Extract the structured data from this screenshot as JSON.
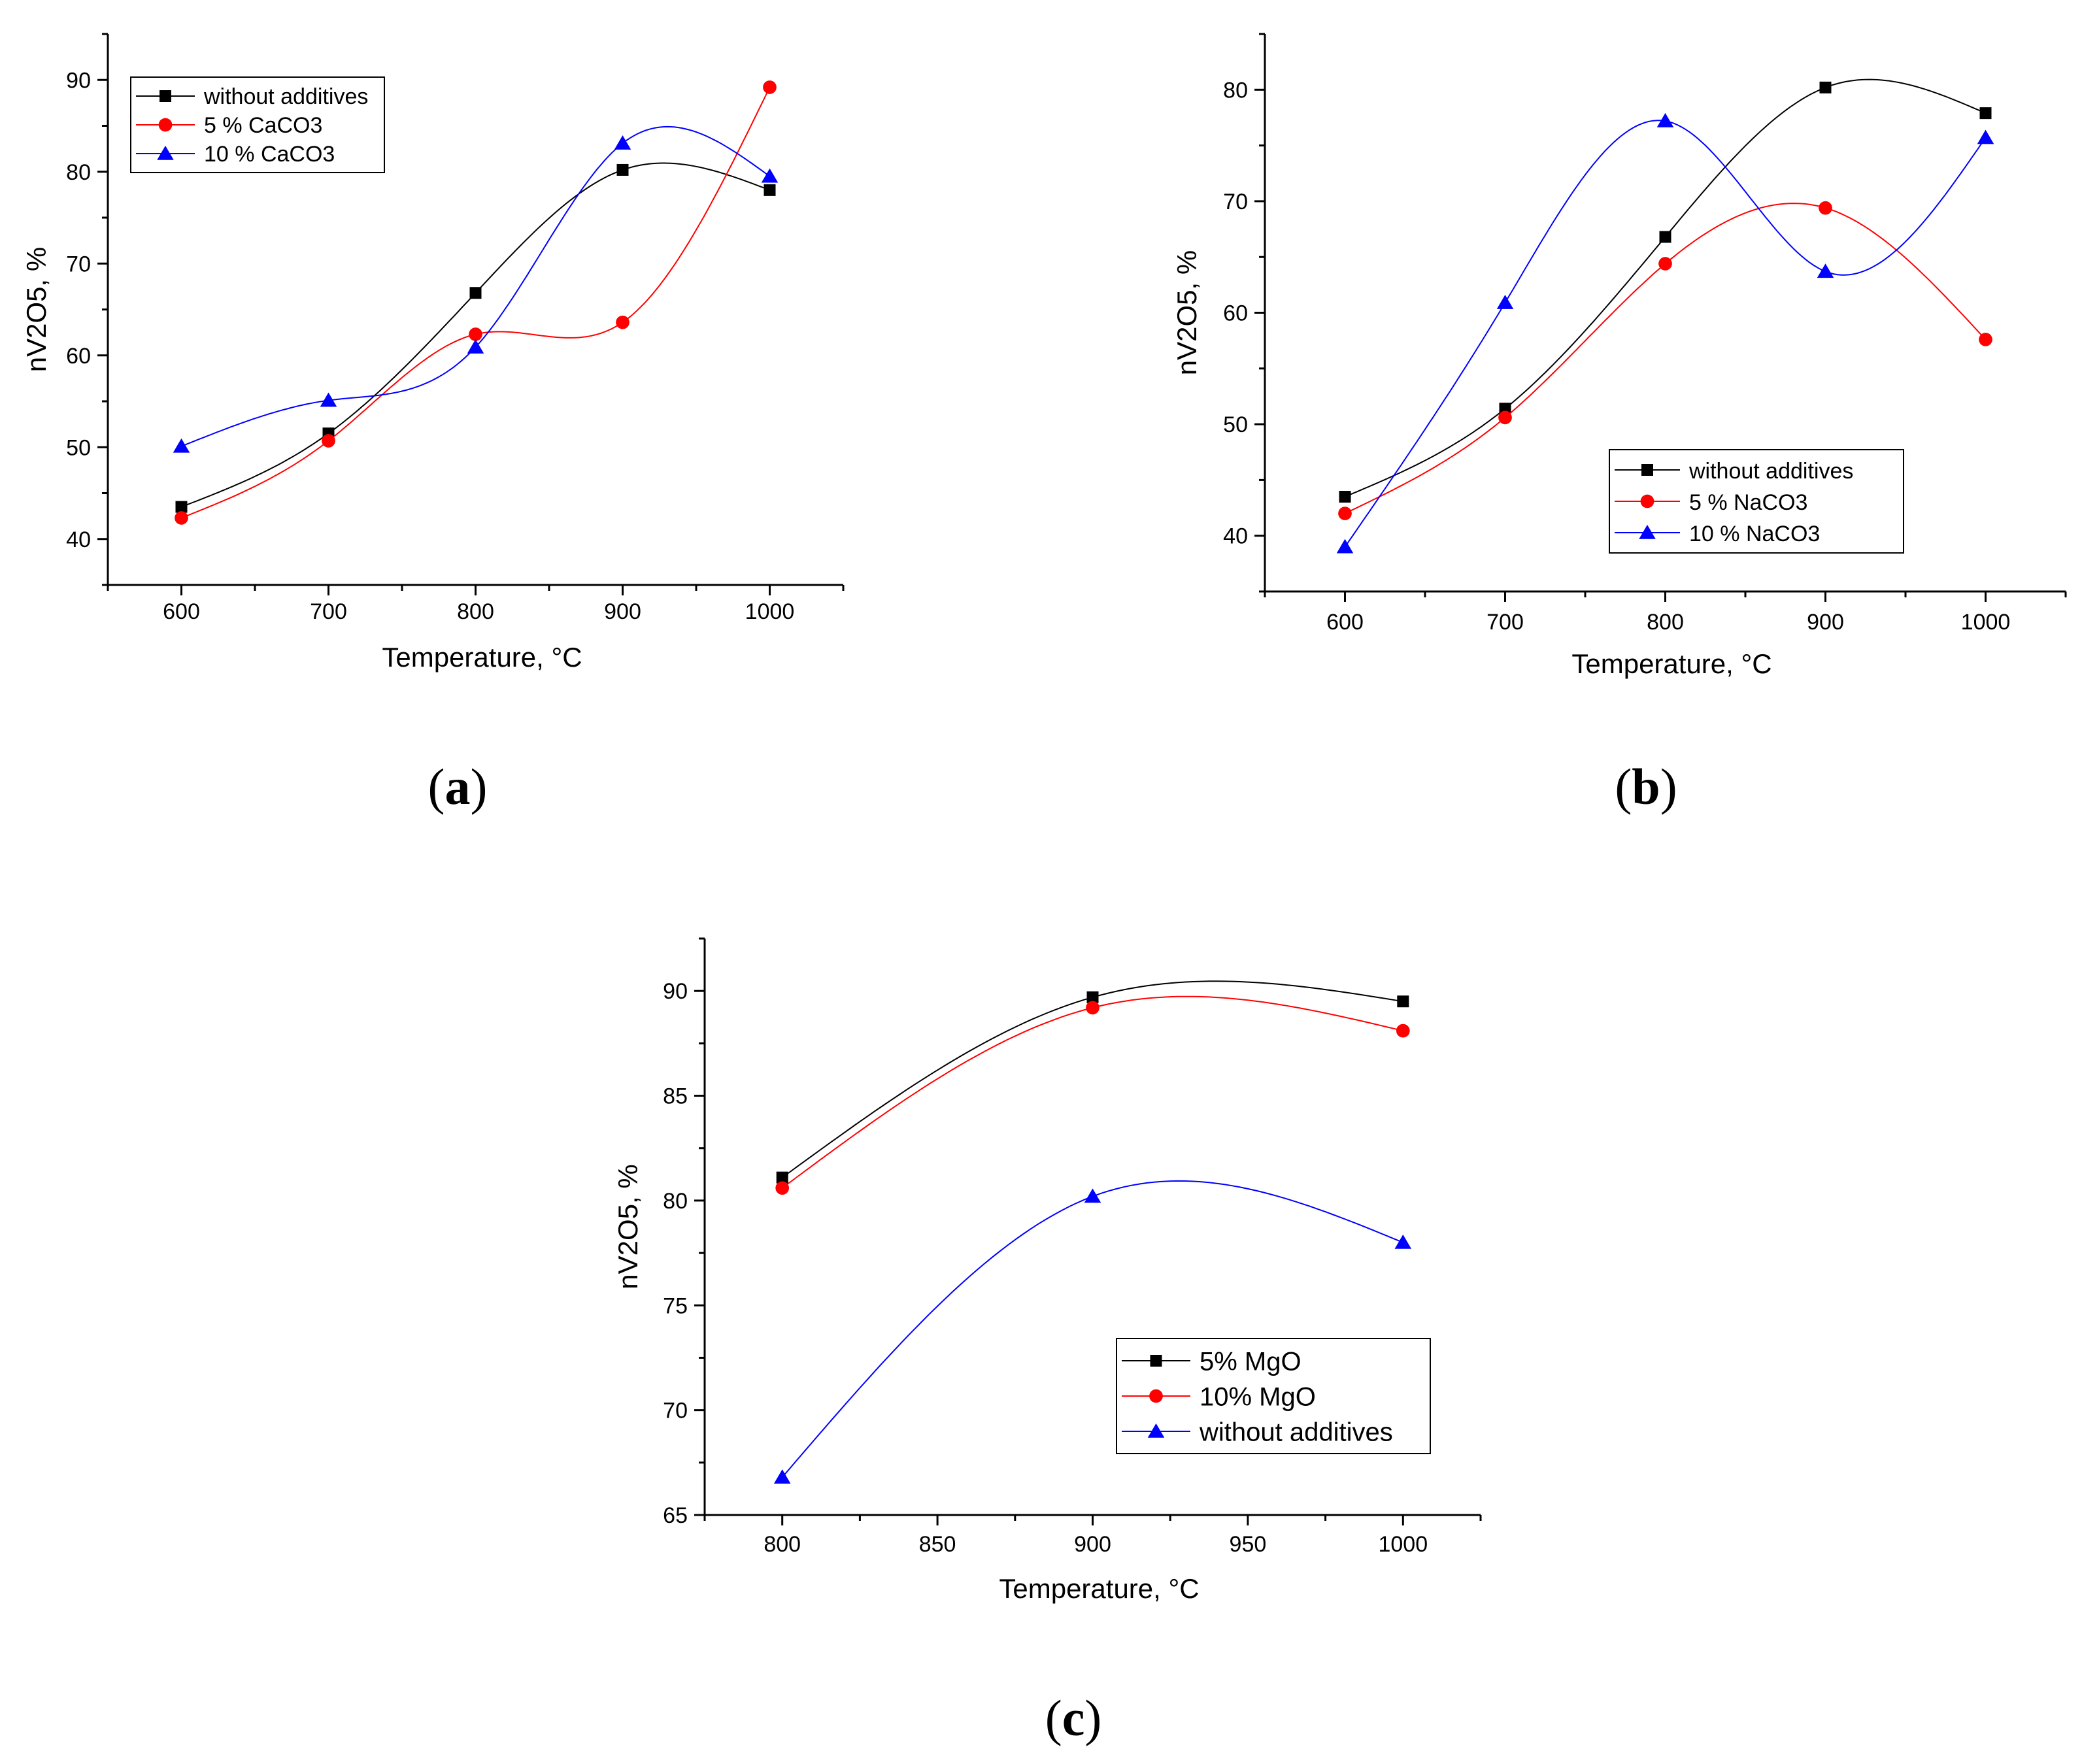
{
  "colors": {
    "black": "#000000",
    "red": "#ff0000",
    "blue": "#0000ff"
  },
  "chart_data": [
    {
      "type": "scatter",
      "panel_label": "a",
      "xlabel": "Temperature, °C",
      "ylabel": "nV2O5, %",
      "xlim": [
        550,
        1050
      ],
      "ylim": [
        35,
        95
      ],
      "xticks": [
        600,
        700,
        800,
        900,
        1000
      ],
      "yticks": [
        40,
        50,
        60,
        70,
        80,
        90
      ],
      "legend_position": "top-left",
      "series": [
        {
          "name": "without additives",
          "marker": "square",
          "color": "#000000",
          "x": [
            600,
            700,
            800,
            900,
            1000
          ],
          "y": [
            43.5,
            51.5,
            66.8,
            80.2,
            78.0
          ]
        },
        {
          "name": "5 % CaCO3",
          "marker": "circle",
          "color": "#ff0000",
          "x": [
            600,
            700,
            800,
            900,
            1000
          ],
          "y": [
            42.3,
            50.7,
            62.3,
            63.6,
            89.2
          ]
        },
        {
          "name": "10 % CaCO3",
          "marker": "triangle",
          "color": "#0000ff",
          "x": [
            600,
            700,
            800,
            900,
            1000
          ],
          "y": [
            50.1,
            55.1,
            60.9,
            83.1,
            79.5
          ]
        }
      ]
    },
    {
      "type": "scatter",
      "panel_label": "b",
      "xlabel": "Temperature, °C",
      "ylabel": "nV2O5, %",
      "xlim": [
        550,
        1050
      ],
      "ylim": [
        35,
        85
      ],
      "xticks": [
        600,
        700,
        800,
        900,
        1000
      ],
      "yticks": [
        40,
        50,
        60,
        70,
        80
      ],
      "legend_position": "center-right",
      "series": [
        {
          "name": "without additives",
          "marker": "square",
          "color": "#000000",
          "x": [
            600,
            700,
            800,
            900,
            1000
          ],
          "y": [
            43.5,
            51.4,
            66.8,
            80.2,
            77.9
          ]
        },
        {
          "name": "5 % NaCO3",
          "marker": "circle",
          "color": "#ff0000",
          "x": [
            600,
            700,
            800,
            900,
            1000
          ],
          "y": [
            42.0,
            50.6,
            64.4,
            69.4,
            57.6
          ]
        },
        {
          "name": "10 % NaCO3",
          "marker": "triangle",
          "color": "#0000ff",
          "x": [
            600,
            700,
            800,
            900,
            1000
          ],
          "y": [
            39.0,
            60.9,
            77.2,
            63.7,
            75.7
          ]
        }
      ]
    },
    {
      "type": "scatter",
      "panel_label": "c",
      "xlabel": "Temperature, °C",
      "ylabel": "nV2O5, %",
      "xlim": [
        775,
        1025
      ],
      "ylim": [
        65,
        92.5
      ],
      "xticks": [
        800,
        850,
        900,
        950,
        1000
      ],
      "yticks": [
        65,
        70,
        75,
        80,
        85,
        90
      ],
      "legend_position": "bottom-right",
      "series": [
        {
          "name": "5% MgO",
          "marker": "square",
          "color": "#000000",
          "x": [
            800,
            900,
            1000
          ],
          "y": [
            81.1,
            89.7,
            89.5
          ]
        },
        {
          "name": "10% MgO",
          "marker": "circle",
          "color": "#ff0000",
          "x": [
            800,
            900,
            1000
          ],
          "y": [
            80.6,
            89.2,
            88.1
          ]
        },
        {
          "name": "without additives",
          "marker": "triangle",
          "color": "#0000ff",
          "x": [
            800,
            900,
            1000
          ],
          "y": [
            66.8,
            80.2,
            78.0
          ]
        }
      ]
    }
  ]
}
